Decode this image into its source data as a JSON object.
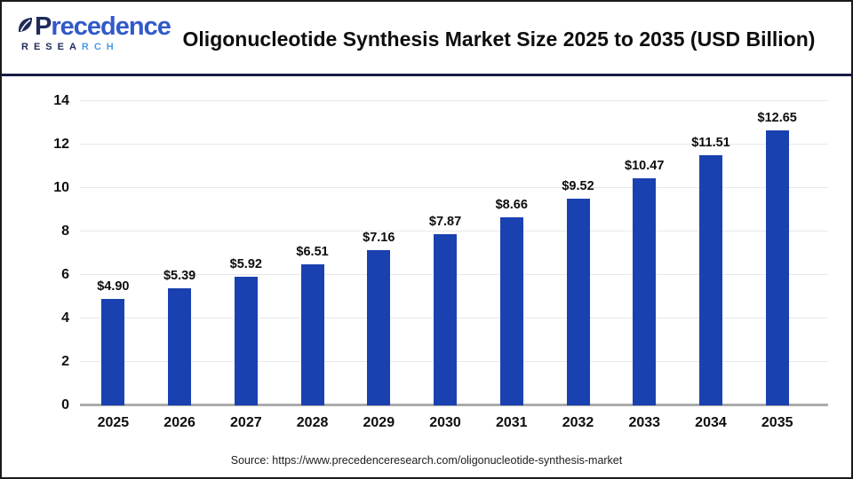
{
  "header": {
    "logo": {
      "brand_first_letter": "P",
      "brand_rest": "recedence",
      "brand_sub_left": "RESEA",
      "brand_sub_right": "RCH"
    },
    "title": "Oligonucleotide Synthesis Market Size 2025 to 2035 (USD Billion)"
  },
  "chart_data": {
    "type": "bar",
    "title": "Oligonucleotide Synthesis Market Size 2025 to 2035 (USD Billion)",
    "categories": [
      "2025",
      "2026",
      "2027",
      "2028",
      "2029",
      "2030",
      "2031",
      "2032",
      "2033",
      "2034",
      "2035"
    ],
    "values": [
      4.9,
      5.39,
      5.92,
      6.51,
      7.16,
      7.87,
      8.66,
      9.52,
      10.47,
      11.51,
      12.65
    ],
    "value_labels": [
      "$4.90",
      "$5.39",
      "$5.92",
      "$6.51",
      "$7.16",
      "$7.87",
      "$8.66",
      "$9.52",
      "$10.47",
      "$11.51",
      "$12.65"
    ],
    "xlabel": "",
    "ylabel": "",
    "ylim": [
      0,
      14
    ],
    "yticks": [
      0,
      2,
      4,
      6,
      8,
      10,
      12,
      14
    ],
    "grid": true,
    "legend": "none",
    "bar_color": "#1a41b0"
  },
  "footer": {
    "source": "Source: https://www.precedenceresearch.com/oligonucleotide-synthesis-market"
  },
  "colors": {
    "bar": "#1a41b0",
    "divider": "#171c45",
    "grid": "#e8e8e8",
    "baseline": "#ababab",
    "logo_navy": "#1e2a5a",
    "logo_blue": "#3159c9",
    "logo_light_blue": "#4d9be8"
  }
}
